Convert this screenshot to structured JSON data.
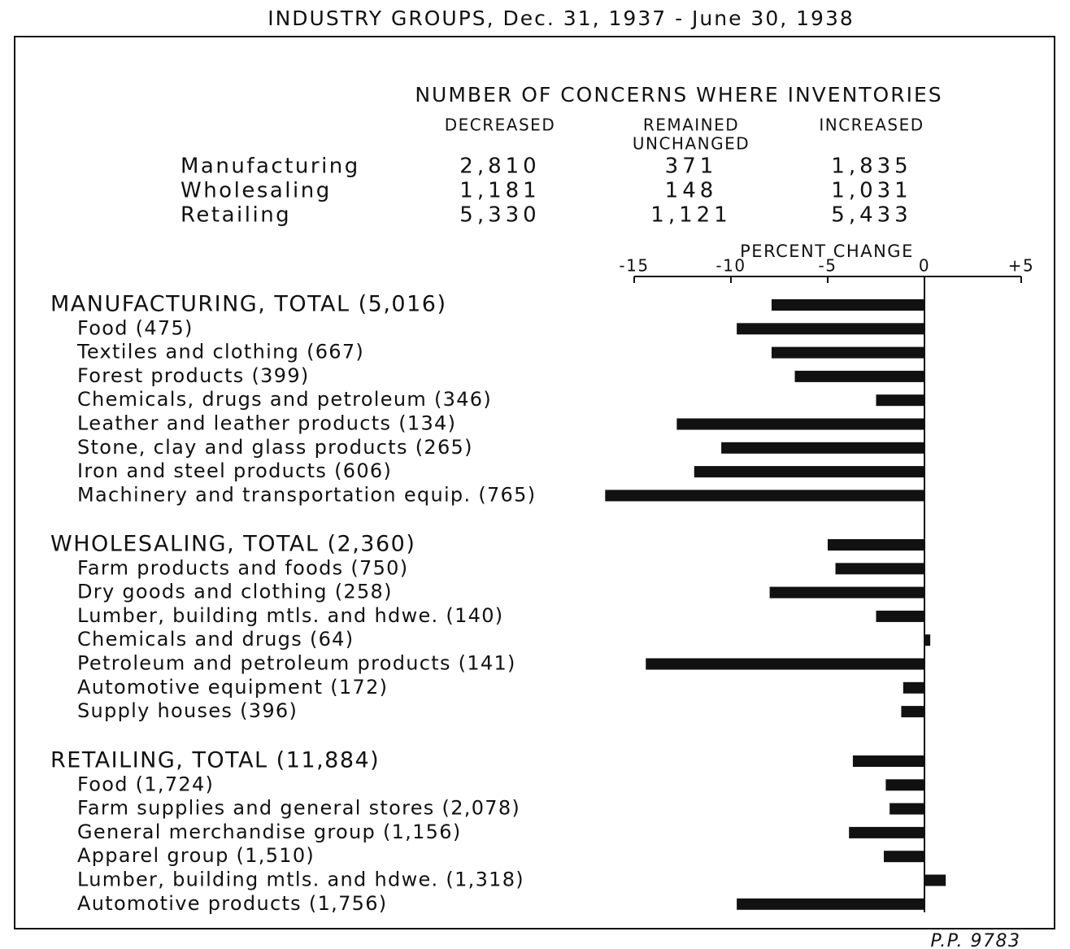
{
  "chart_data": {
    "type": "bar",
    "title": "INDUSTRY GROUPS, Dec. 31, 1937 - June 30, 1938",
    "table": {
      "header": "NUMBER OF CONCERNS WHERE INVENTORIES",
      "columns": [
        [
          "DECREASED"
        ],
        [
          "REMAINED",
          "UNCHANGED"
        ],
        [
          "INCREASED"
        ]
      ],
      "rows": [
        {
          "label": "Manufacturing",
          "values": [
            "2,810",
            "371",
            "1,835"
          ]
        },
        {
          "label": "Wholesaling",
          "values": [
            "1,181",
            "148",
            "1,031"
          ]
        },
        {
          "label": "Retailing",
          "values": [
            "5,330",
            "1,121",
            "5,433"
          ]
        }
      ]
    },
    "x_label": "PERCENT CHANGE",
    "xlim": [
      -15,
      5
    ],
    "xticks": [
      -15,
      -10,
      -5,
      0,
      {
        "value": 5,
        "label": "+5"
      }
    ],
    "color": "#111111",
    "groups": [
      {
        "name": "MANUFACTURING, TOTAL (5,016)",
        "value": -7.9,
        "categories": [
          "Food (475)",
          "Textiles and clothing (667)",
          "Forest products (399)",
          "Chemicals, drugs and petroleum (346)",
          "Leather and leather products (134)",
          "Stone, clay and glass products (265)",
          "Iron and steel products (606)",
          "Machinery and transportation equip. (765)"
        ],
        "values": [
          -9.7,
          -7.9,
          -6.7,
          -2.5,
          -12.8,
          -10.5,
          -11.9,
          -16.5
        ]
      },
      {
        "name": "WHOLESALING, TOTAL (2,360)",
        "value": -5.0,
        "categories": [
          "Farm products and foods (750)",
          "Dry goods and clothing (258)",
          "Lumber, building mtls. and hdwe. (140)",
          "Chemicals and drugs (64)",
          "Petroleum and petroleum products (141)",
          "Automotive equipment (172)",
          "Supply houses (396)"
        ],
        "values": [
          -4.6,
          -8.0,
          -2.5,
          0.3,
          -14.4,
          -1.1,
          -1.2
        ]
      },
      {
        "name": "RETAILING, TOTAL (11,884)",
        "value": -3.7,
        "categories": [
          "Food (1,724)",
          "Farm supplies and general stores (2,078)",
          "General merchandise group (1,156)",
          "Apparel group (1,510)",
          "Lumber, building mtls. and hdwe. (1,318)",
          "Automotive products (1,756)"
        ],
        "values": [
          -2.0,
          -1.8,
          -3.9,
          -2.1,
          1.1,
          -9.7
        ]
      }
    ],
    "source": "P.P. 9783"
  }
}
